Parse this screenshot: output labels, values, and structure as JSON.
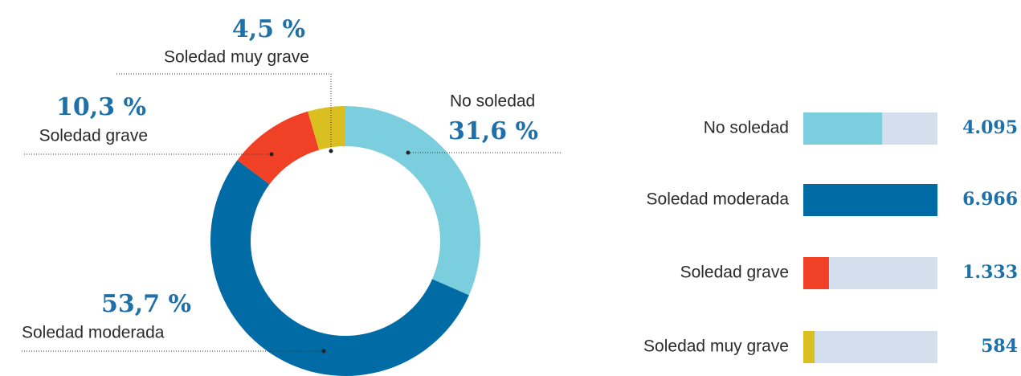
{
  "chart_data": [
    {
      "type": "donut",
      "categories": [
        "No soledad",
        "Soledad moderada",
        "Soledad grave",
        "Soledad muy grave"
      ],
      "values": [
        31.6,
        53.7,
        10.3,
        4.5
      ],
      "value_labels": [
        "31,6 %",
        "53,7 %",
        "10,3 %",
        "4,5 %"
      ],
      "colors": [
        "#7acedd",
        "#006ba4",
        "#f04025",
        "#d9bf1f"
      ]
    },
    {
      "type": "hbar",
      "categories": [
        "No soledad",
        "Soledad moderada",
        "Soledad grave",
        "Soledad muy grave"
      ],
      "values": [
        4095,
        6966,
        1333,
        584
      ],
      "value_labels": [
        "4.095",
        "6.966",
        "1.333",
        "584"
      ],
      "colors": [
        "#7acedd",
        "#006ba4",
        "#f04025",
        "#d9bf1f"
      ],
      "xlim": [
        0,
        6966
      ]
    }
  ]
}
